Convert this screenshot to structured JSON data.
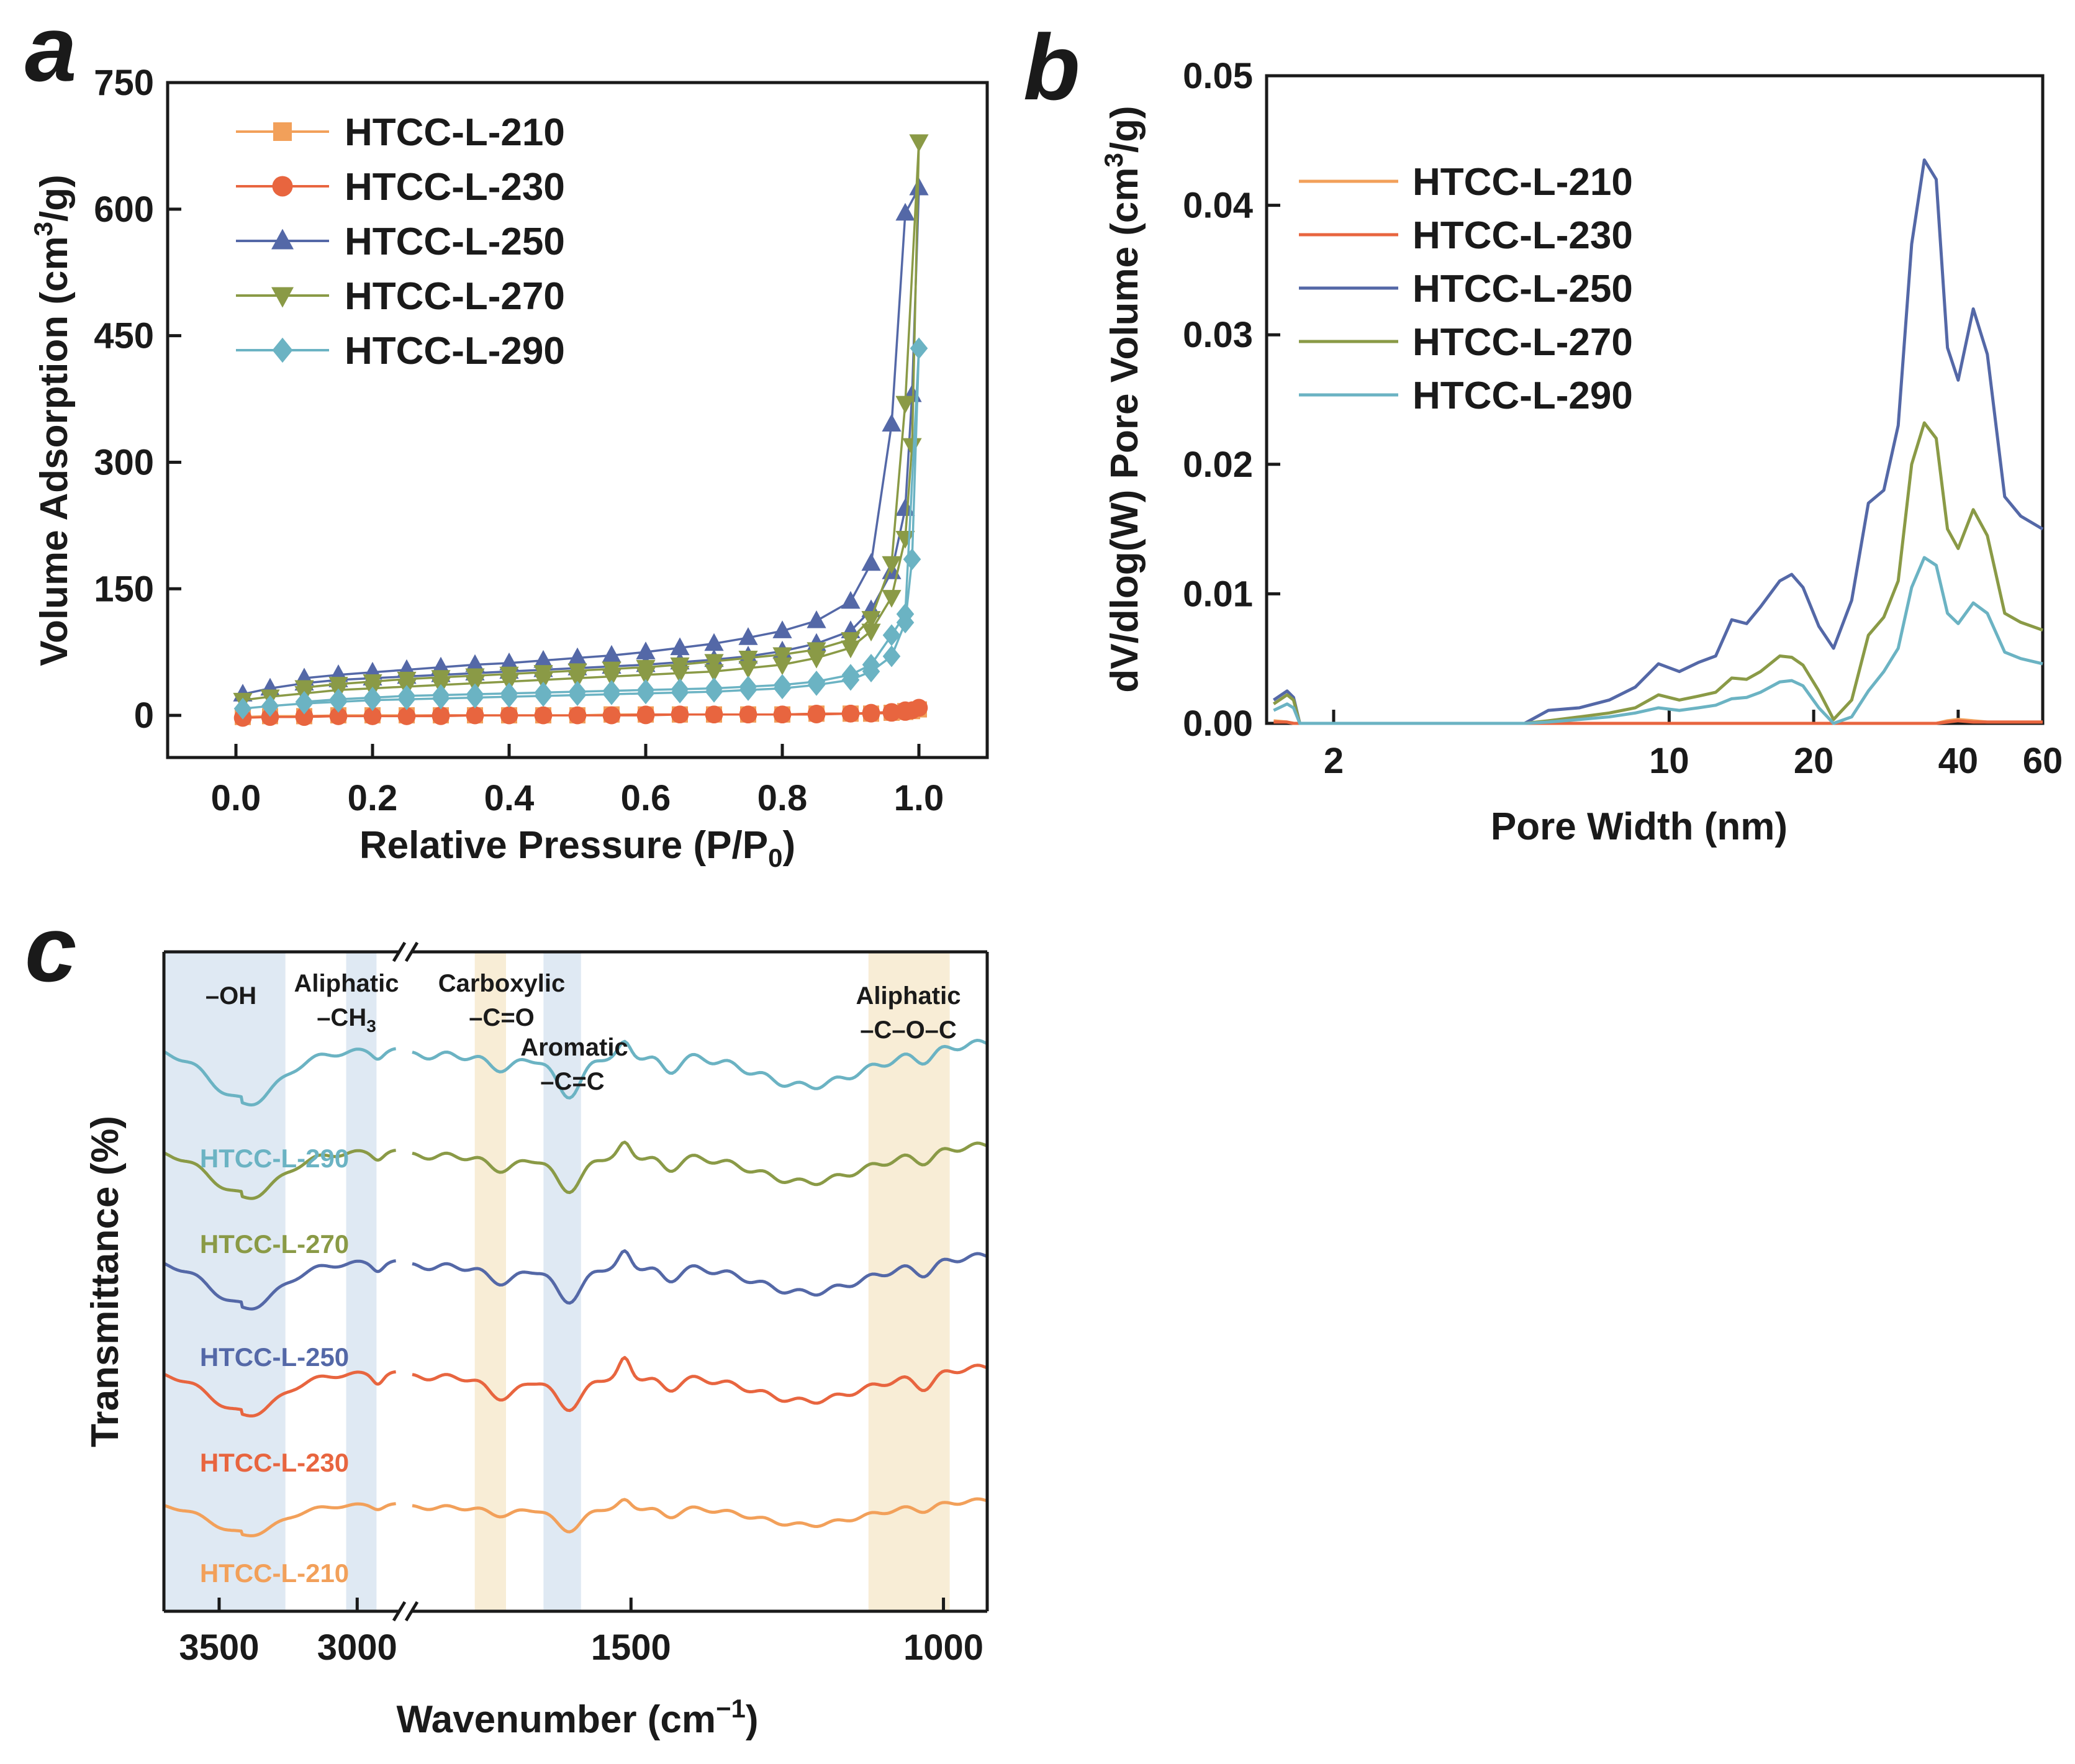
{
  "series_names": [
    "HTCC-L-210",
    "HTCC-L-230",
    "HTCC-L-250",
    "HTCC-L-270",
    "HTCC-L-290"
  ],
  "colors": {
    "HTCC-L-210": "#F2A05A",
    "HTCC-L-230": "#E8653F",
    "HTCC-L-250": "#5468A7",
    "HTCC-L-270": "#8A9A46",
    "HTCC-L-290": "#6BB3C3",
    "band_blue": "#DCE7F2",
    "band_yellow": "#F7EBD2"
  },
  "chart_data": [
    {
      "panel": "a",
      "type": "line",
      "xlabel": "Relative Pressure (P/P",
      "xlabel_sub": "0",
      "xlabel_end": ")",
      "ylabel_pre": "Volume Adsorption (cm",
      "ylabel_sup": "3",
      "ylabel_end": "/g)",
      "xlim": [
        -0.1,
        1.1
      ],
      "ylim": [
        -50,
        750
      ],
      "xticks": [
        "0.0",
        "0.2",
        "0.4",
        "0.6",
        "0.8",
        "1.0"
      ],
      "yticks": [
        "0",
        "150",
        "300",
        "450",
        "600",
        "750"
      ],
      "legend": "top-left",
      "x_ads": [
        0.01,
        0.05,
        0.1,
        0.15,
        0.2,
        0.25,
        0.3,
        0.35,
        0.4,
        0.45,
        0.5,
        0.55,
        0.6,
        0.65,
        0.7,
        0.75,
        0.8,
        0.85,
        0.9,
        0.93,
        0.96,
        0.98,
        0.99,
        1.0
      ],
      "x_des": [
        0.98,
        0.96,
        0.93,
        0.9,
        0.85,
        0.8,
        0.75,
        0.7,
        0.65,
        0.6,
        0.55,
        0.5,
        0.45,
        0.4,
        0.35,
        0.3,
        0.25,
        0.2,
        0.15,
        0.1
      ],
      "series": [
        {
          "name": "HTCC-L-210",
          "marker": "square",
          "ads": [
            -2,
            -1,
            -1,
            0,
            0,
            0,
            0,
            0,
            0,
            0,
            0,
            1,
            1,
            1,
            1,
            1,
            1,
            2,
            2,
            2,
            3,
            4,
            5,
            7
          ],
          "des": [
            5,
            3,
            2,
            2,
            2,
            1,
            1,
            1,
            1,
            1,
            1,
            0,
            0,
            0,
            0,
            0,
            0,
            0,
            0,
            -1
          ]
        },
        {
          "name": "HTCC-L-230",
          "marker": "circle",
          "ads": [
            -3,
            -2,
            -2,
            -1,
            -1,
            -1,
            -1,
            0,
            0,
            0,
            0,
            0,
            0,
            1,
            1,
            1,
            1,
            1,
            2,
            2,
            3,
            4,
            6,
            9
          ],
          "des": [
            6,
            4,
            3,
            2,
            2,
            1,
            1,
            1,
            1,
            1,
            0,
            0,
            0,
            0,
            0,
            0,
            -1,
            -1,
            -1,
            -1
          ]
        },
        {
          "name": "HTCC-L-250",
          "marker": "triangle-up",
          "ads": [
            25,
            32,
            38,
            42,
            44,
            46,
            48,
            50,
            52,
            54,
            56,
            58,
            60,
            63,
            66,
            70,
            76,
            85,
            100,
            125,
            170,
            245,
            380,
            625
          ],
          "des": [
            595,
            345,
            180,
            135,
            112,
            100,
            92,
            85,
            80,
            75,
            71,
            68,
            65,
            62,
            60,
            57,
            54,
            51,
            48,
            44
          ]
        },
        {
          "name": "HTCC-L-270",
          "marker": "triangle-down",
          "ads": [
            18,
            22,
            26,
            30,
            32,
            34,
            36,
            38,
            40,
            42,
            44,
            46,
            48,
            50,
            52,
            56,
            60,
            68,
            80,
            100,
            140,
            210,
            320,
            680
          ],
          "des": [
            370,
            180,
            115,
            90,
            78,
            72,
            68,
            64,
            60,
            57,
            55,
            53,
            51,
            49,
            47,
            45,
            43,
            40,
            37,
            33
          ]
        },
        {
          "name": "HTCC-L-290",
          "marker": "diamond",
          "ads": [
            8,
            11,
            14,
            16,
            18,
            19,
            20,
            21,
            22,
            23,
            24,
            25,
            26,
            27,
            28,
            30,
            32,
            36,
            42,
            52,
            70,
            110,
            185,
            435
          ],
          "des": [
            120,
            95,
            60,
            48,
            40,
            36,
            34,
            32,
            31,
            30,
            29,
            28,
            27,
            26,
            25,
            24,
            23,
            21,
            19,
            16
          ]
        }
      ]
    },
    {
      "panel": "b",
      "type": "line",
      "xscale": "log",
      "xlabel": "Pore Width (nm)",
      "ylabel_pre": "dV/dlog(W) Pore Volume (cm",
      "ylabel_sup": "3",
      "ylabel_end": "/g)",
      "xlim": [
        1.45,
        60
      ],
      "ylim": [
        0,
        0.05
      ],
      "xticks": [
        "2",
        "10",
        "20",
        "40",
        "60"
      ],
      "xtick_values": [
        2,
        10,
        20,
        40,
        60
      ],
      "yticks": [
        "0.00",
        "0.01",
        "0.02",
        "0.03",
        "0.04",
        "0.05"
      ],
      "legend": "upper-left",
      "x": [
        1.5,
        1.6,
        1.65,
        1.7,
        1.8,
        2,
        3,
        4,
        5,
        5.6,
        6.5,
        7.5,
        8.5,
        9.5,
        10.5,
        11.5,
        12.5,
        13.5,
        14.5,
        15.5,
        17,
        18,
        19,
        20.5,
        22,
        24,
        26,
        28,
        30,
        32,
        34,
        36,
        38,
        40,
        43,
        46,
        50,
        54,
        60
      ],
      "series": [
        {
          "name": "HTCC-L-210",
          "values": [
            0.0002,
            0.0001,
            0,
            0,
            0,
            0,
            0,
            0,
            0,
            0,
            0,
            0,
            0,
            0,
            0,
            0,
            0,
            0,
            0,
            0,
            0,
            0,
            0,
            0,
            0,
            0,
            0,
            0,
            0,
            0,
            0,
            0,
            0.0002,
            0.0003,
            0.0002,
            0.0001,
            0.0001,
            0.0001,
            0.0001
          ]
        },
        {
          "name": "HTCC-L-230",
          "values": [
            0.0001,
            0.0001,
            0,
            0,
            0,
            0,
            0,
            0,
            0,
            0,
            0,
            0,
            0,
            0,
            0,
            0,
            0,
            0,
            0,
            0,
            0,
            0,
            0,
            0,
            0,
            0,
            0,
            0,
            0,
            0,
            0,
            0,
            0.0001,
            0.0002,
            0.0001,
            0.0001,
            0.0001,
            0.0001,
            0.0001
          ]
        },
        {
          "name": "HTCC-L-250",
          "values": [
            0.0018,
            0.0025,
            0.002,
            0,
            0,
            0,
            0,
            0,
            0,
            0.001,
            0.0012,
            0.0018,
            0.0028,
            0.0046,
            0.004,
            0.0047,
            0.0052,
            0.008,
            0.0077,
            0.009,
            0.011,
            0.0115,
            0.0105,
            0.0075,
            0.0058,
            0.0095,
            0.017,
            0.018,
            0.023,
            0.037,
            0.0435,
            0.042,
            0.029,
            0.0265,
            0.032,
            0.0285,
            0.0175,
            0.016,
            0.015
          ]
        },
        {
          "name": "HTCC-L-270",
          "values": [
            0.0015,
            0.0022,
            0.0018,
            0,
            0,
            0,
            0,
            0,
            0,
            0.0002,
            0.0005,
            0.0008,
            0.0012,
            0.0022,
            0.0018,
            0.0021,
            0.0024,
            0.0035,
            0.0034,
            0.004,
            0.0052,
            0.0051,
            0.0045,
            0.0025,
            0.0003,
            0.0018,
            0.0068,
            0.0082,
            0.011,
            0.02,
            0.0232,
            0.022,
            0.015,
            0.0135,
            0.0165,
            0.0145,
            0.0085,
            0.0078,
            0.0072
          ]
        },
        {
          "name": "HTCC-L-290",
          "values": [
            0.001,
            0.0015,
            0.0012,
            0,
            0,
            0,
            0,
            0,
            0,
            0.0001,
            0.0003,
            0.0005,
            0.0008,
            0.0012,
            0.001,
            0.0012,
            0.0014,
            0.0019,
            0.002,
            0.0024,
            0.0032,
            0.0033,
            0.0029,
            0.0012,
            0,
            0.0005,
            0.0025,
            0.004,
            0.0058,
            0.0105,
            0.0128,
            0.0122,
            0.0085,
            0.0077,
            0.0093,
            0.0085,
            0.0055,
            0.005,
            0.0046
          ]
        }
      ]
    },
    {
      "panel": "c",
      "type": "line",
      "xlabel": "Wavenumber (cm",
      "xlabel_sup": "−1",
      "xlabel_end": ")",
      "ylabel": "Transmittance (%)",
      "x_reversed": true,
      "broken_axis": [
        2850,
        1850
      ],
      "xlim_left": [
        3700,
        2850
      ],
      "xlim_right": [
        1850,
        930
      ],
      "xticks": [
        "3500",
        "3000",
        "1500",
        "1000"
      ],
      "xtick_values": [
        3500,
        3000,
        1500,
        1000
      ],
      "bands": [
        {
          "label": "–OH",
          "range": [
            3700,
            3260
          ],
          "color": "blue"
        },
        {
          "label": "Aliphatic",
          "label2": "–CH",
          "sub": "3",
          "range": [
            3040,
            2930
          ],
          "color": "blue"
        },
        {
          "label": "Carboxylic",
          "label2": "–C=O",
          "range": [
            1750,
            1700
          ],
          "color": "yellow"
        },
        {
          "label": "Aromatic",
          "label2": "–C=C",
          "range": [
            1640,
            1580
          ],
          "color": "blue"
        },
        {
          "label": "Aliphatic",
          "label2": "–C–O–C",
          "range": [
            1120,
            990
          ],
          "color": "yellow"
        }
      ],
      "series_offsets_order": [
        "HTCC-L-290",
        "HTCC-L-270",
        "HTCC-L-250",
        "HTCC-L-230",
        "HTCC-L-210"
      ]
    }
  ]
}
